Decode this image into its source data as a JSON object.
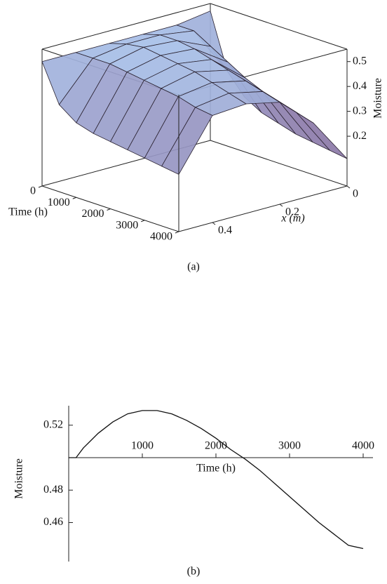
{
  "chart_data": [
    {
      "type": "surface3d",
      "caption": "(a)",
      "time_label": "Time (h)",
      "x_label": "x (m)",
      "z_label": "Moisture",
      "times": [
        0,
        500,
        1000,
        1500,
        2000,
        2500,
        3000,
        3500,
        4000
      ],
      "xs": [
        0,
        0.1,
        0.2,
        0.3,
        0.4,
        0.5
      ],
      "z": [
        [
          0.52,
          0.5,
          0.5,
          0.5,
          0.5,
          0.5
        ],
        [
          0.3,
          0.5,
          0.52,
          0.52,
          0.5,
          0.35
        ],
        [
          0.22,
          0.46,
          0.52,
          0.53,
          0.5,
          0.3
        ],
        [
          0.18,
          0.42,
          0.51,
          0.52,
          0.49,
          0.28
        ],
        [
          0.16,
          0.38,
          0.49,
          0.51,
          0.48,
          0.27
        ],
        [
          0.14,
          0.35,
          0.47,
          0.5,
          0.47,
          0.26
        ],
        [
          0.13,
          0.33,
          0.45,
          0.48,
          0.46,
          0.25
        ],
        [
          0.12,
          0.31,
          0.43,
          0.46,
          0.44,
          0.24
        ],
        [
          0.11,
          0.29,
          0.41,
          0.44,
          0.43,
          0.23
        ]
      ],
      "time_lim": [
        0,
        4000
      ],
      "x_lim": [
        0,
        0.5
      ],
      "z_lim": [
        0,
        0.55
      ],
      "time_ticks": [
        0,
        1000,
        2000,
        3000,
        4000
      ],
      "x_ticks": [
        0,
        0.2,
        0.4
      ],
      "z_ticks": [
        0.2,
        0.3,
        0.4,
        0.5
      ],
      "color_low": "#7a4a7e",
      "color_high": "#a9c6ee"
    },
    {
      "type": "line",
      "caption": "(b)",
      "xlabel": "Time (h)",
      "ylabel": "Moisture",
      "color": "#111111",
      "x": [
        0,
        100,
        200,
        400,
        600,
        800,
        1000,
        1200,
        1400,
        1600,
        1800,
        2000,
        2200,
        2400,
        2600,
        2800,
        3000,
        3200,
        3400,
        3600,
        3800,
        4000
      ],
      "values": [
        0.5,
        0.5,
        0.506,
        0.515,
        0.522,
        0.527,
        0.529,
        0.529,
        0.527,
        0.523,
        0.518,
        0.512,
        0.505,
        0.499,
        0.492,
        0.484,
        0.476,
        0.468,
        0.46,
        0.453,
        0.446,
        0.444
      ],
      "xlim": [
        0,
        4000
      ],
      "ylim": [
        0.436,
        0.532
      ],
      "x_axis_crossing": 0.5,
      "xticks": [
        1000,
        2000,
        3000,
        4000
      ],
      "yticks": [
        0.46,
        0.48,
        0.52
      ]
    }
  ]
}
